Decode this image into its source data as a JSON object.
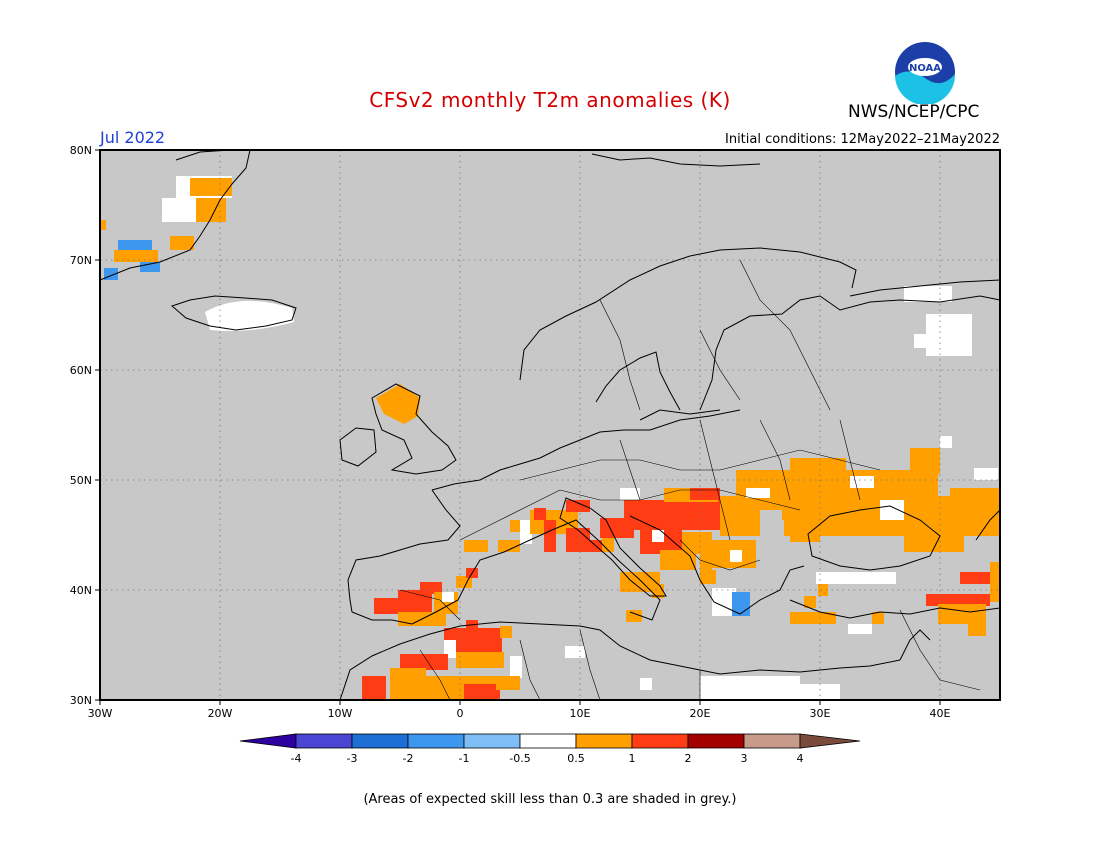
{
  "header": {
    "title": "CFSv2 monthly T2m anomalies (K)",
    "agency": "NWS/NCEP/CPC",
    "logo_text": "NOAA",
    "month": "Jul 2022",
    "initial_conditions": "Initial conditions: 12May2022–21May2022"
  },
  "map": {
    "region": "Europe",
    "lon_range": [
      -30,
      45
    ],
    "lat_range": [
      30,
      80
    ],
    "lat_labels": [
      "30N",
      "40N",
      "50N",
      "60N",
      "70N",
      "80N"
    ],
    "lon_labels": [
      "30W",
      "20W",
      "10W",
      "0",
      "10E",
      "20E",
      "30E",
      "40E"
    ],
    "grey_meaning": "expected skill less than 0.3",
    "anomaly_regions": [
      {
        "name": "Greenland east coast",
        "level": "0.5-1"
      },
      {
        "name": "Greenland east coast south",
        "level": "-2 to -1"
      },
      {
        "name": "Iceland",
        "level": "-0.5 to 0.5"
      },
      {
        "name": "Scotland",
        "level": "0.5-1"
      },
      {
        "name": "Iberia south",
        "level": "1-2"
      },
      {
        "name": "Morocco/Algeria",
        "level": "1-2"
      },
      {
        "name": "Alps and Pannonian basin",
        "level": "1-2"
      },
      {
        "name": "Ukraine and southern Russia",
        "level": "0.5-1"
      },
      {
        "name": "Turkey east",
        "level": "1-2"
      },
      {
        "name": "Greece",
        "level": "-1 to -0.5"
      },
      {
        "name": "Northwest Russia",
        "level": "-0.5 to 0.5"
      }
    ]
  },
  "legend": {
    "ticks": [
      "-4",
      "-3",
      "-2",
      "-1",
      "-0.5",
      "0.5",
      "1",
      "2",
      "3",
      "4"
    ],
    "colors": [
      "#2d00a0",
      "#4a45d2",
      "#1d6fd6",
      "#3d97ee",
      "#7ebdf6",
      "#ffffff",
      "#ffa000",
      "#ff3c14",
      "#a30000",
      "#c79a8a",
      "#7a4a3a"
    ]
  },
  "footnote": "(Areas of expected skill less than 0.3 are shaded in grey.)"
}
